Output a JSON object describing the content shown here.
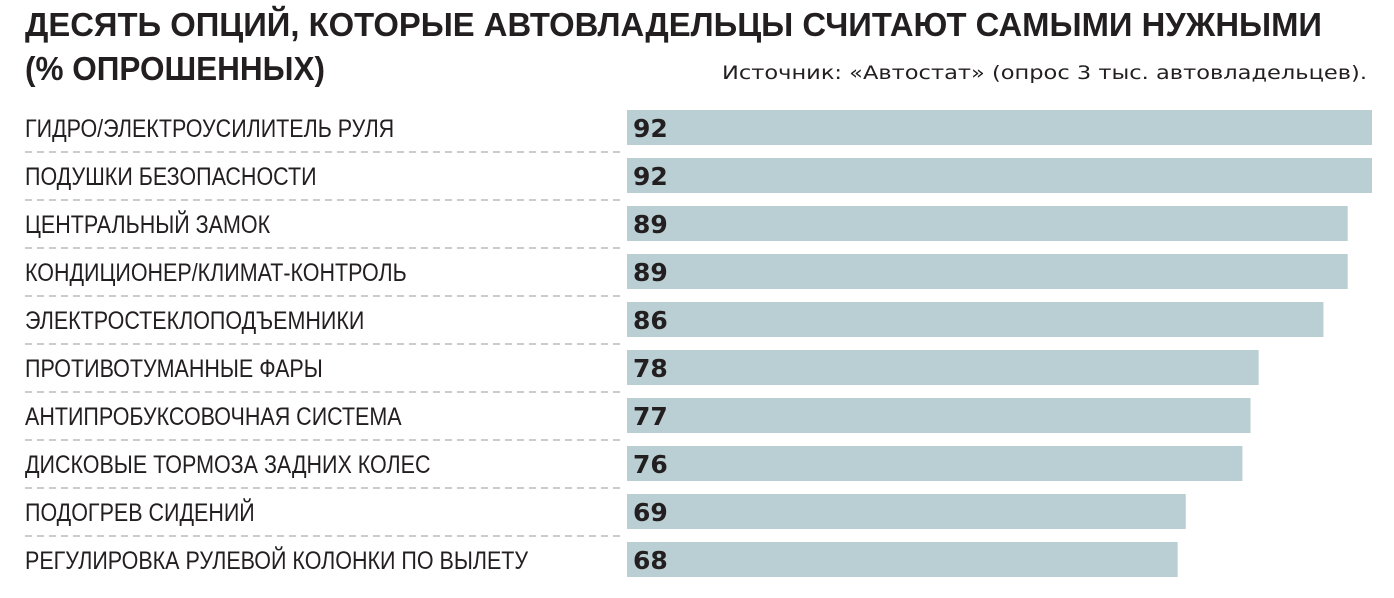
{
  "chart_data": {
    "type": "bar",
    "orientation": "horizontal",
    "title_line1": "ДЕСЯТЬ ОПЦИЙ, КОТОРЫЕ АВТОВЛАДЕЛЬЦЫ СЧИТАЮТ САМЫМИ НУЖНЫМИ",
    "title_line2": "(% ОПРОШЕННЫХ)",
    "source": "Источник: «Автостат» (опрос 3 тыс. автовладельцев).",
    "categories": [
      "ГИДРО/ЭЛЕКТРОУСИЛИТЕЛЬ РУЛЯ",
      "ПОДУШКИ БЕЗОПАСНОСТИ",
      "ЦЕНТРАЛЬНЫЙ ЗАМОК",
      "КОНДИЦИОНЕР/КЛИМАТ-КОНТРОЛЬ",
      "ЭЛЕКТРОСТЕКЛОПОДЪЕМНИКИ",
      "ПРОТИВОТУМАННЫЕ ФАРЫ",
      "АНТИПРОБУКСОВОЧНАЯ СИСТЕМА",
      "ДИСКОВЫЕ ТОРМОЗА ЗАДНИХ КОЛЕС",
      "ПОДОГРЕВ СИДЕНИЙ",
      "РЕГУЛИРОВКА РУЛЕВОЙ КОЛОНКИ ПО ВЫЛЕТУ"
    ],
    "values": [
      92,
      92,
      89,
      89,
      86,
      78,
      77,
      76,
      69,
      68
    ],
    "xlim": [
      0,
      92
    ],
    "grid": false,
    "legend": "none",
    "colors": {
      "bar": "#bacfd3",
      "text": "#231f20",
      "divider": "#9a9a9a"
    }
  }
}
